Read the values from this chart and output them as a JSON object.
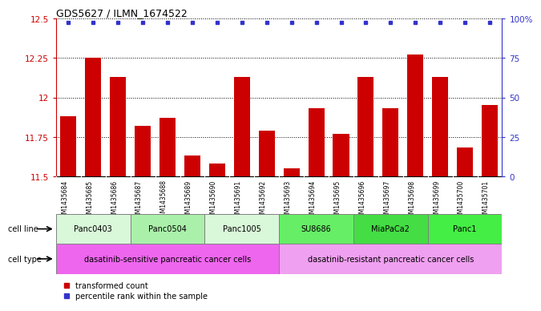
{
  "title": "GDS5627 / ILMN_1674522",
  "samples": [
    "GSM1435684",
    "GSM1435685",
    "GSM1435686",
    "GSM1435687",
    "GSM1435688",
    "GSM1435689",
    "GSM1435690",
    "GSM1435691",
    "GSM1435692",
    "GSM1435693",
    "GSM1435694",
    "GSM1435695",
    "GSM1435696",
    "GSM1435697",
    "GSM1435698",
    "GSM1435699",
    "GSM1435700",
    "GSM1435701"
  ],
  "transformed_counts": [
    11.88,
    12.25,
    12.13,
    11.82,
    11.87,
    11.63,
    11.58,
    12.13,
    11.79,
    11.55,
    11.93,
    11.77,
    12.13,
    11.93,
    12.27,
    12.13,
    11.68,
    11.95
  ],
  "ylim": [
    11.5,
    12.5
  ],
  "yticks": [
    11.5,
    11.75,
    12.0,
    12.25,
    12.5
  ],
  "ytick_labels": [
    "11.5",
    "11.75",
    "12",
    "12.25",
    "12.5"
  ],
  "right_yticks": [
    0,
    25,
    50,
    75,
    100
  ],
  "right_ytick_labels": [
    "0",
    "25",
    "50",
    "75",
    "100%"
  ],
  "bar_color": "#cc0000",
  "dot_color": "#3333cc",
  "cell_lines": [
    {
      "name": "Panc0403",
      "start": 0,
      "end": 3,
      "color": "#d9f7d9"
    },
    {
      "name": "Panc0504",
      "start": 3,
      "end": 6,
      "color": "#aaf0aa"
    },
    {
      "name": "Panc1005",
      "start": 6,
      "end": 9,
      "color": "#d9f7d9"
    },
    {
      "name": "SU8686",
      "start": 9,
      "end": 12,
      "color": "#66ee66"
    },
    {
      "name": "MiaPaCa2",
      "start": 12,
      "end": 15,
      "color": "#44dd44"
    },
    {
      "name": "Panc1",
      "start": 15,
      "end": 18,
      "color": "#44ee44"
    }
  ],
  "cell_types": [
    {
      "name": "dasatinib-sensitive pancreatic cancer cells",
      "start": 0,
      "end": 9,
      "color": "#ee66ee"
    },
    {
      "name": "dasatinib-resistant pancreatic cancer cells",
      "start": 9,
      "end": 18,
      "color": "#f0a0f0"
    }
  ],
  "cell_line_label": "cell line",
  "cell_type_label": "cell type",
  "legend_red": "transformed count",
  "legend_blue": "percentile rank within the sample",
  "bg_xtick": "#c8c8c8"
}
